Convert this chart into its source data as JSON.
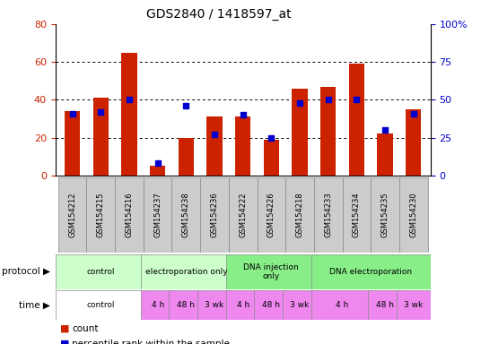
{
  "title": "GDS2840 / 1418597_at",
  "samples": [
    "GSM154212",
    "GSM154215",
    "GSM154216",
    "GSM154237",
    "GSM154238",
    "GSM154236",
    "GSM154222",
    "GSM154226",
    "GSM154218",
    "GSM154233",
    "GSM154234",
    "GSM154235",
    "GSM154230"
  ],
  "counts": [
    34,
    41,
    65,
    5,
    20,
    31,
    31,
    19,
    46,
    47,
    59,
    22,
    35
  ],
  "percentile_ranks": [
    41,
    42,
    50,
    8,
    46,
    27,
    40,
    25,
    48,
    50,
    50,
    30,
    41
  ],
  "ylim_left": [
    0,
    80
  ],
  "ylim_right": [
    0,
    100
  ],
  "yticks_left": [
    0,
    20,
    40,
    60,
    80
  ],
  "yticks_right": [
    0,
    25,
    50,
    75,
    100
  ],
  "yticklabels_right": [
    "0",
    "25",
    "50",
    "75",
    "100%"
  ],
  "bar_color": "#cc2200",
  "dot_color": "#0000cc",
  "bg_color": "#ffffff",
  "tick_label_color_left": "#cc2200",
  "tick_label_color_right": "#0000cc",
  "protocol_data": [
    {
      "label": "control",
      "start": 0,
      "end": 3,
      "color": "#ccffcc"
    },
    {
      "label": "electroporation only",
      "start": 3,
      "end": 6,
      "color": "#ccffcc"
    },
    {
      "label": "DNA injection\nonly",
      "start": 6,
      "end": 9,
      "color": "#88ee88"
    },
    {
      "label": "DNA electroporation",
      "start": 9,
      "end": 13,
      "color": "#88ee88"
    }
  ],
  "time_data": [
    {
      "label": "control",
      "start": 0,
      "end": 3,
      "color": "#ffffff"
    },
    {
      "label": "4 h",
      "start": 3,
      "end": 4,
      "color": "#ee88ee"
    },
    {
      "label": "48 h",
      "start": 4,
      "end": 5,
      "color": "#ee88ee"
    },
    {
      "label": "3 wk",
      "start": 5,
      "end": 6,
      "color": "#ee88ee"
    },
    {
      "label": "4 h",
      "start": 6,
      "end": 7,
      "color": "#ee88ee"
    },
    {
      "label": "48 h",
      "start": 7,
      "end": 8,
      "color": "#ee88ee"
    },
    {
      "label": "3 wk",
      "start": 8,
      "end": 9,
      "color": "#ee88ee"
    },
    {
      "label": "4 h",
      "start": 9,
      "end": 11,
      "color": "#ee88ee"
    },
    {
      "label": "48 h",
      "start": 11,
      "end": 12,
      "color": "#ee88ee"
    },
    {
      "label": "3 wk",
      "start": 12,
      "end": 13,
      "color": "#ee88ee"
    }
  ],
  "legend_count_label": "count",
  "legend_pct_label": "percentile rank within the sample",
  "xlabel_box_color": "#cccccc",
  "protocol_label": "protocol",
  "time_label": "time"
}
